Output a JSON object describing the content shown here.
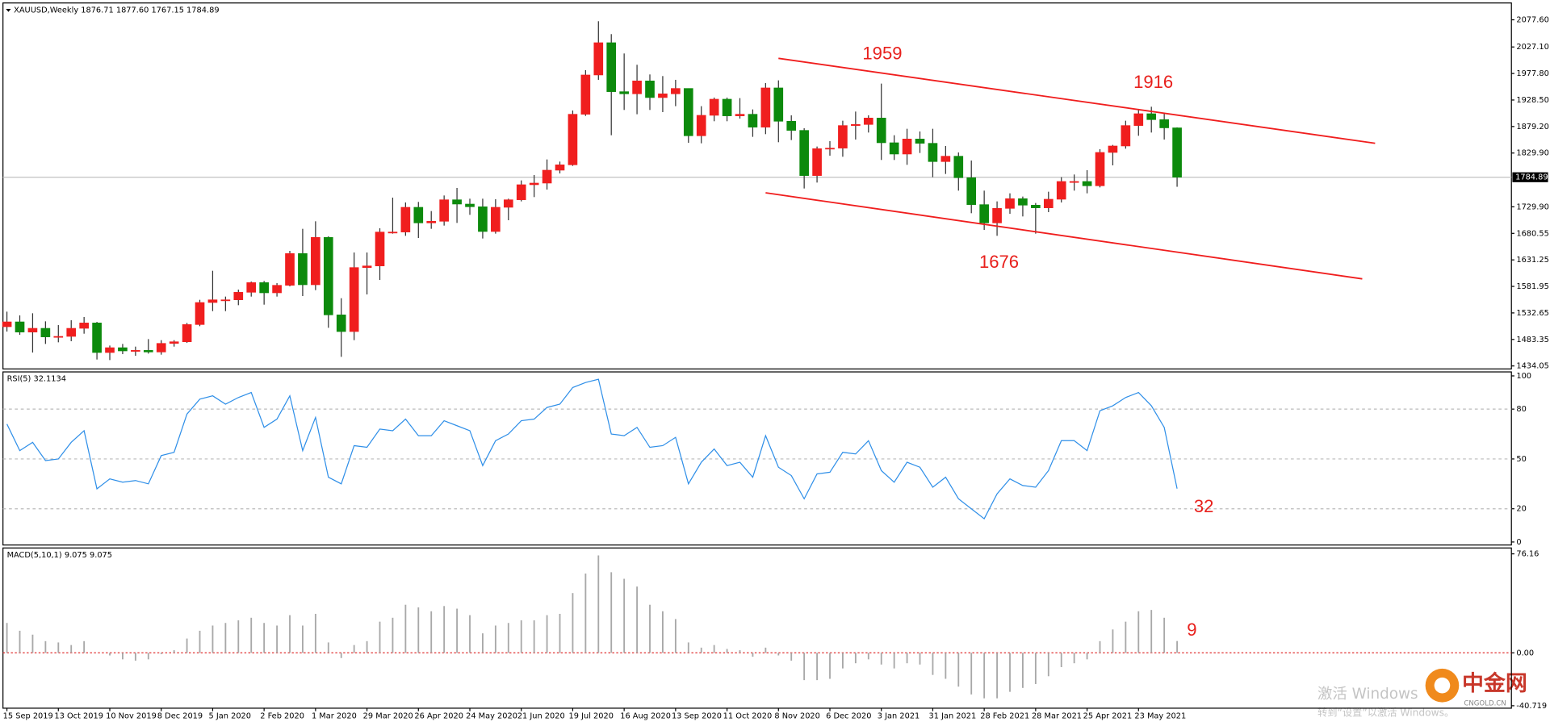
{
  "chart_data": [
    {
      "type": "candlestick",
      "title": "XAUUSD,Weekly 1876.71 1877.60 1767.15 1784.89",
      "categories": [
        "15 Sep 2019",
        null,
        null,
        null,
        "13 Oct 2019",
        null,
        null,
        null,
        "10 Nov 2019",
        null,
        null,
        null,
        "8 Dec 2019",
        null,
        null,
        null,
        "5 Jan 2020",
        null,
        null,
        null,
        "2 Feb 2020",
        null,
        null,
        null,
        "1 Mar 2020",
        null,
        null,
        null,
        "29 Mar 2020",
        null,
        null,
        null,
        "26 Apr 2020",
        null,
        null,
        null,
        "24 May 2020",
        null,
        null,
        null,
        "21 Jun 2020",
        null,
        null,
        null,
        "19 Jul 2020",
        null,
        null,
        null,
        "16 Aug 2020",
        null,
        null,
        null,
        "13 Sep 2020",
        null,
        null,
        null,
        "11 Oct 2020",
        null,
        null,
        null,
        "8 Nov 2020",
        null,
        null,
        null,
        "6 Dec 2020",
        null,
        null,
        null,
        "3 Jan 2021",
        null,
        null,
        null,
        "31 Jan 2021",
        null,
        null,
        null,
        "28 Feb 2021",
        null,
        null,
        null,
        "28 Mar 2021",
        null,
        null,
        null,
        "25 Apr 2021",
        null,
        null,
        null,
        "23 May 2021",
        null,
        null,
        null
      ],
      "open": [
        1507,
        1516,
        1497,
        1504,
        1488,
        1489,
        1504,
        1514,
        1459,
        1468,
        1462,
        1463,
        1460,
        1476,
        1479,
        1511,
        1552,
        1557,
        1557,
        1571,
        1589,
        1570,
        1584,
        1643,
        1585,
        1673,
        1529,
        1498,
        1617,
        1620,
        1683,
        1683,
        1729,
        1700,
        1703,
        1743,
        1735,
        1730,
        1684,
        1729,
        1743,
        1771,
        1774,
        1798,
        1808,
        1902,
        1975,
        2035,
        1944,
        1940,
        1964,
        1933,
        1940,
        1950,
        1862,
        1900,
        1930,
        1899,
        1902,
        1878,
        1951,
        1889,
        1872,
        1788,
        1838,
        1839,
        1881,
        1883,
        1895,
        1849,
        1828,
        1856,
        1848,
        1814,
        1824,
        1784,
        1734,
        1700,
        1727,
        1745,
        1733,
        1728,
        1744,
        1777,
        1777,
        1769,
        1831,
        1843,
        1881,
        1903,
        1892,
        1876.71
      ],
      "high": [
        1535,
        1528,
        1532,
        1517,
        1510,
        1519,
        1525,
        1516,
        1472,
        1475,
        1470,
        1484,
        1482,
        1482,
        1514,
        1557,
        1611,
        1563,
        1576,
        1591,
        1592,
        1588,
        1648,
        1689,
        1703,
        1675,
        1560,
        1645,
        1645,
        1690,
        1747,
        1738,
        1739,
        1722,
        1751,
        1765,
        1745,
        1745,
        1744,
        1745,
        1779,
        1789,
        1818,
        1814,
        1909,
        1984,
        2075,
        2051,
        2015,
        1994,
        1976,
        1973,
        1966,
        1950,
        1917,
        1933,
        1933,
        1932,
        1911,
        1960,
        1965,
        1900,
        1876,
        1842,
        1852,
        1890,
        1907,
        1900,
        1959,
        1863,
        1875,
        1870,
        1875,
        1843,
        1831,
        1816,
        1760,
        1740,
        1755,
        1749,
        1737,
        1758,
        1785,
        1790,
        1798,
        1837,
        1845,
        1890,
        1912,
        1916,
        1903,
        1877.6
      ],
      "low": [
        1498,
        1492,
        1459,
        1475,
        1478,
        1480,
        1494,
        1446,
        1445,
        1456,
        1453,
        1457,
        1455,
        1470,
        1477,
        1508,
        1536,
        1536,
        1547,
        1563,
        1548,
        1563,
        1582,
        1564,
        1575,
        1505,
        1451,
        1482,
        1567,
        1594,
        1680,
        1676,
        1672,
        1689,
        1695,
        1700,
        1715,
        1671,
        1680,
        1705,
        1740,
        1748,
        1762,
        1792,
        1806,
        1899,
        1966,
        1863,
        1910,
        1902,
        1910,
        1906,
        1917,
        1849,
        1848,
        1889,
        1889,
        1894,
        1860,
        1865,
        1850,
        1854,
        1764,
        1775,
        1825,
        1823,
        1855,
        1868,
        1817,
        1817,
        1808,
        1830,
        1785,
        1791,
        1760,
        1718,
        1687,
        1676,
        1717,
        1712,
        1680,
        1720,
        1738,
        1760,
        1755,
        1766,
        1807,
        1838,
        1862,
        1868,
        1855,
        1767.15
      ],
      "close": [
        1516,
        1497,
        1504,
        1488,
        1489,
        1504,
        1514,
        1459,
        1468,
        1462,
        1463,
        1460,
        1476,
        1479,
        1511,
        1552,
        1557,
        1557,
        1571,
        1589,
        1570,
        1584,
        1643,
        1585,
        1673,
        1529,
        1498,
        1617,
        1620,
        1683,
        1683,
        1729,
        1700,
        1703,
        1743,
        1735,
        1730,
        1684,
        1729,
        1743,
        1771,
        1774,
        1798,
        1808,
        1902,
        1975,
        2035,
        1944,
        1940,
        1964,
        1933,
        1940,
        1950,
        1862,
        1900,
        1930,
        1899,
        1902,
        1878,
        1951,
        1889,
        1872,
        1788,
        1838,
        1839,
        1881,
        1883,
        1895,
        1849,
        1828,
        1856,
        1848,
        1814,
        1824,
        1784,
        1734,
        1700,
        1727,
        1745,
        1733,
        1728,
        1744,
        1777,
        1777,
        1769,
        1831,
        1843,
        1881,
        1903,
        1892,
        1876.71,
        1784.89
      ],
      "up_color": "#f01e1e",
      "down_color": "#0c8a0c",
      "last_price": 1784.89,
      "ylim": [
        1428.5,
        2108.9
      ],
      "yticks": [
        {
          "value": 2077.6,
          "label": "2077.60"
        },
        {
          "value": 2027.1,
          "label": "2027.10"
        },
        {
          "value": 1977.8,
          "label": "1977.80"
        },
        {
          "value": 1928.5,
          "label": "1928.50"
        },
        {
          "value": 1879.2,
          "label": "1879.20"
        },
        {
          "value": 1829.9,
          "label": "1829.90"
        },
        {
          "value": 1729.9,
          "label": "1729.90"
        },
        1680.55,
        1631.25,
        1581.95,
        1532.65,
        1483.35,
        1434.05
      ],
      "trend_lines": [
        {
          "color": "#f01e1e",
          "x": [
            60,
            106.4
          ],
          "values": [
            2006,
            1848
          ]
        },
        {
          "color": "#f01e1e",
          "x": [
            59,
            105.4
          ],
          "values": [
            1756,
            1596
          ]
        }
      ],
      "annotations": [
        "1959",
        "1916",
        "1676"
      ]
    },
    {
      "type": "line",
      "title": "RSI(5) 32.1134",
      "color": "#2f8fe8",
      "values": [
        71,
        55,
        60,
        49,
        50,
        60,
        67,
        32,
        38,
        36,
        37,
        35,
        52,
        54,
        77,
        86,
        88,
        83,
        87,
        90,
        69,
        74,
        88,
        55,
        75,
        39,
        35,
        58,
        57,
        68,
        67,
        74,
        64,
        64,
        73,
        70,
        67,
        46,
        61,
        65,
        73,
        74,
        81,
        83,
        93,
        96,
        98,
        65,
        64,
        69,
        57,
        58,
        63,
        35,
        48,
        56,
        46,
        48,
        39,
        64,
        45,
        40,
        26,
        41,
        42,
        54,
        53,
        61,
        43,
        36,
        48,
        45,
        33,
        39,
        26,
        20,
        14,
        29,
        38,
        34,
        33,
        43,
        61,
        61,
        55,
        79,
        82,
        87,
        90,
        82,
        69,
        32.1134
      ],
      "ylim": [
        -1.8,
        102.4
      ],
      "yticks": [
        100,
        80,
        50,
        20,
        0
      ],
      "levels": [
        80,
        50,
        20
      ],
      "annotations": [
        "32"
      ]
    },
    {
      "type": "bar",
      "title": "MACD(5,10,1) 9.075 9.075",
      "color": "#a8a8a8",
      "values": [
        23,
        17,
        14,
        9,
        8,
        6,
        9,
        0,
        -2,
        -5,
        -6,
        -5,
        -1,
        2,
        11,
        17,
        21,
        23,
        25,
        27,
        23,
        21,
        29,
        21,
        30,
        8,
        -4,
        6,
        9,
        24,
        27,
        37,
        35,
        32,
        36,
        34,
        29,
        15,
        21,
        23,
        25,
        25,
        29,
        30,
        46,
        61,
        75,
        62,
        57,
        51,
        37,
        32,
        26,
        8,
        4,
        6,
        3,
        2,
        -3,
        4,
        -2,
        -6,
        -21,
        -21,
        -20,
        -12,
        -8,
        -5,
        -9,
        -12,
        -8,
        -9,
        -17,
        -20,
        -26,
        -32,
        -35,
        -35,
        -30,
        -27,
        -24,
        -18,
        -11,
        -8,
        -5,
        9,
        18,
        24,
        32,
        33,
        27,
        9.075
      ],
      "ylim": [
        -42.6,
        80.7
      ],
      "yticks": [
        76.16,
        {
          "value": 0,
          "label": "0.00"
        },
        -40.719
      ],
      "annotations": [
        "9"
      ]
    }
  ],
  "watermark": {
    "line1": "激活 Windows",
    "line2": "转到“设置”以激活 Windows。"
  },
  "logo": {
    "name": "中金网",
    "site": "CNGOLD.CN"
  }
}
